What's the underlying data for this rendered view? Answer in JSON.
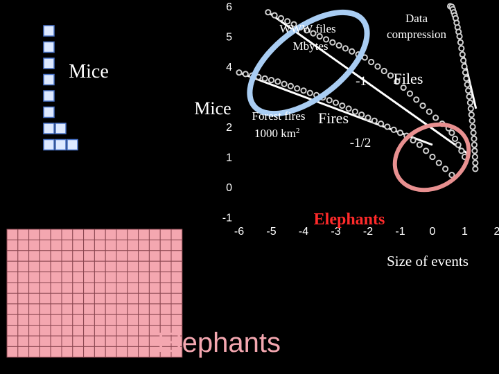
{
  "chart_data": {
    "type": "scatter",
    "xlabel": "Size of events",
    "ylabel": "",
    "xlim": [
      -6.8,
      2.4
    ],
    "ylim": [
      -1,
      6
    ],
    "x_ticks": [
      "-6",
      "-5",
      "-4",
      "-3",
      "-2",
      "-1",
      "0",
      "1",
      "2"
    ],
    "y_ticks": [
      "-1",
      "0",
      "1",
      "2",
      "4",
      "5",
      "6"
    ],
    "series": [
      {
        "name": "WWW files Mbytes",
        "points": [
          [
            -5.1,
            5.8
          ],
          [
            -4.9,
            5.7
          ],
          [
            -4.7,
            5.6
          ],
          [
            -4.5,
            5.5
          ],
          [
            -4.3,
            5.4
          ],
          [
            -4.1,
            5.3
          ],
          [
            -3.9,
            5.2
          ],
          [
            -3.7,
            5.1
          ],
          [
            -3.5,
            5.0
          ],
          [
            -3.3,
            4.9
          ],
          [
            -3.1,
            4.8
          ],
          [
            -2.9,
            4.7
          ],
          [
            -2.7,
            4.6
          ],
          [
            -2.5,
            4.5
          ],
          [
            -2.3,
            4.4
          ],
          [
            -2.1,
            4.3
          ],
          [
            -1.9,
            4.15
          ],
          [
            -1.7,
            4.0
          ],
          [
            -1.5,
            3.85
          ],
          [
            -1.3,
            3.7
          ],
          [
            -1.1,
            3.5
          ],
          [
            -0.9,
            3.3
          ],
          [
            -0.7,
            3.1
          ],
          [
            -0.5,
            2.9
          ],
          [
            -0.3,
            2.7
          ],
          [
            -0.1,
            2.5
          ],
          [
            0.1,
            2.3
          ],
          [
            0.3,
            2.1
          ],
          [
            0.5,
            1.95
          ],
          [
            0.6,
            1.8
          ],
          [
            0.7,
            1.6
          ],
          [
            0.8,
            1.4
          ],
          [
            0.9,
            1.2
          ],
          [
            1.0,
            1.0
          ]
        ]
      },
      {
        "name": "Data compression",
        "points": [
          [
            0.55,
            6.0
          ],
          [
            0.6,
            5.98
          ],
          [
            0.63,
            5.9
          ],
          [
            0.66,
            5.8
          ],
          [
            0.69,
            5.7
          ],
          [
            0.72,
            5.6
          ],
          [
            0.75,
            5.45
          ],
          [
            0.78,
            5.3
          ],
          [
            0.81,
            5.15
          ],
          [
            0.84,
            5.0
          ],
          [
            0.87,
            4.8
          ],
          [
            0.9,
            4.6
          ],
          [
            0.93,
            4.4
          ],
          [
            0.96,
            4.2
          ],
          [
            0.99,
            4.0
          ],
          [
            1.02,
            3.8
          ],
          [
            1.05,
            3.6
          ],
          [
            1.08,
            3.4
          ],
          [
            1.11,
            3.2
          ],
          [
            1.14,
            3.0
          ],
          [
            1.17,
            2.8
          ],
          [
            1.19,
            2.6
          ],
          [
            1.21,
            2.4
          ],
          [
            1.23,
            2.2
          ],
          [
            1.25,
            2.0
          ],
          [
            1.27,
            1.8
          ],
          [
            1.29,
            1.6
          ],
          [
            1.3,
            1.4
          ],
          [
            1.31,
            1.2
          ],
          [
            1.32,
            1.0
          ],
          [
            1.33,
            0.8
          ],
          [
            1.33,
            0.6
          ]
        ]
      },
      {
        "name": "Forest fires 1000 km2",
        "points": [
          [
            -6.0,
            3.8
          ],
          [
            -5.8,
            3.75
          ],
          [
            -5.6,
            3.7
          ],
          [
            -5.4,
            3.65
          ],
          [
            -5.2,
            3.6
          ],
          [
            -5.0,
            3.55
          ],
          [
            -4.8,
            3.5
          ],
          [
            -4.6,
            3.42
          ],
          [
            -4.4,
            3.35
          ],
          [
            -4.2,
            3.27
          ],
          [
            -4.0,
            3.2
          ],
          [
            -3.8,
            3.12
          ],
          [
            -3.6,
            3.05
          ],
          [
            -3.4,
            2.97
          ],
          [
            -3.2,
            2.88
          ],
          [
            -3.0,
            2.8
          ],
          [
            -2.8,
            2.7
          ],
          [
            -2.6,
            2.6
          ],
          [
            -2.4,
            2.5
          ],
          [
            -2.2,
            2.4
          ],
          [
            -2.0,
            2.3
          ],
          [
            -1.8,
            2.2
          ],
          [
            -1.6,
            2.1
          ],
          [
            -1.4,
            2.0
          ],
          [
            -1.2,
            1.9
          ],
          [
            -1.0,
            1.8
          ],
          [
            -0.8,
            1.7
          ],
          [
            -0.6,
            1.55
          ],
          [
            -0.4,
            1.4
          ],
          [
            -0.2,
            1.2
          ],
          [
            0.0,
            1.0
          ],
          [
            0.2,
            0.8
          ],
          [
            0.4,
            0.6
          ],
          [
            0.6,
            0.4
          ]
        ]
      }
    ],
    "fit_lines": [
      {
        "label": "-1",
        "from": [
          -5.1,
          5.8
        ],
        "to": [
          1.1,
          1.1
        ]
      },
      {
        "label": "-1/2",
        "from": [
          -6.0,
          3.8
        ],
        "to": [
          0.0,
          1.4
        ]
      },
      {
        "label": "",
        "from": [
          0.6,
          6.0
        ],
        "to": [
          1.35,
          2.6
        ]
      }
    ],
    "annotations": {
      "www": "WWW files Mbytes",
      "www_line1": "WWW files",
      "www_line2": "Mbytes",
      "data_compression_line1": "Data",
      "data_compression_line2": "compression",
      "slope_minus_one": "-1",
      "files": "Files",
      "forest_fires_line1": "Forest fires",
      "forest_fires_line2_base": "1000 km",
      "forest_fires_line2_sup": "2",
      "fires": "Fires",
      "slope_minus_half": "-1/2",
      "elephants": "Elephants",
      "mice": "Mice"
    },
    "grid": false,
    "legend": "none"
  },
  "left_panel": {
    "mice_label": "Mice",
    "elephants_label": "Elephants",
    "mice_block_color": "#dde9ff",
    "mice_block_border": "#4a74c9",
    "elephant_block_color": "#f4a7b0",
    "elephant_block_border": "#8a4650",
    "elephant_grid_cols": 16,
    "elephant_grid_rows": 12
  },
  "colors": {
    "background": "#000000",
    "blue_ellipse": "#a9cdf3",
    "red_ellipse": "#e89090",
    "elephants_text_red": "#ff2a2a",
    "series_marker": "#cfcfcf",
    "fit_line": "#ffffff"
  }
}
